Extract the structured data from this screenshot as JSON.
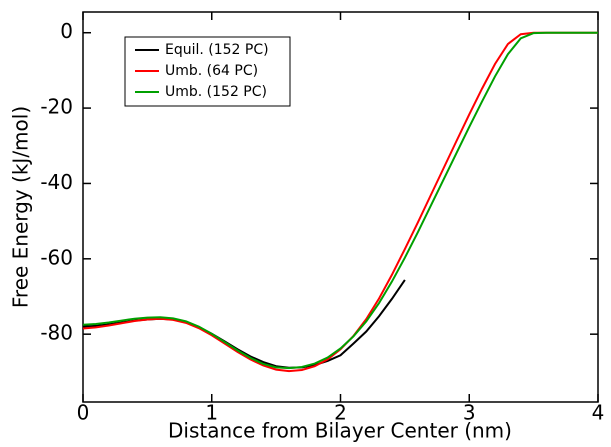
{
  "chart_data": {
    "type": "line",
    "xlabel": "Distance from Bilayer Center (nm)",
    "ylabel": "Free Energy (kJ/mol)",
    "x": [
      0,
      0.1,
      0.2,
      0.3,
      0.4,
      0.5,
      0.6,
      0.7,
      0.8,
      0.9,
      1.0,
      1.1,
      1.2,
      1.3,
      1.4,
      1.5,
      1.6,
      1.7,
      1.8,
      1.9,
      2.0,
      2.1,
      2.2,
      2.3,
      2.4,
      2.5,
      2.6,
      2.7,
      2.8,
      2.9,
      3.0,
      3.1,
      3.2,
      3.3,
      3.4,
      3.5,
      3.6,
      3.7,
      3.8,
      3.9,
      4.0
    ],
    "series": [
      {
        "name": "Equil. (152 PC)",
        "color": "#000000",
        "values": [
          -78,
          -77.8,
          -77.4,
          -76.9,
          -76.4,
          -76.1,
          -75.9,
          -76.1,
          -76.8,
          -78.1,
          -79.9,
          -81.9,
          -84,
          -85.9,
          -87.4,
          -88.5,
          -88.9,
          -88.8,
          -88.2,
          -87.1,
          -85.6,
          -82.5,
          -79.3,
          -75.2,
          -70.6,
          -65.6,
          null,
          null,
          null,
          null,
          null,
          null,
          null,
          null,
          null,
          null,
          null,
          null,
          null,
          null,
          null
        ]
      },
      {
        "name": "Umb. (64 PC)",
        "color": "#ff0000",
        "values": [
          -78.5,
          -78.2,
          -77.7,
          -77.1,
          -76.5,
          -76.1,
          -75.9,
          -76.2,
          -77,
          -78.4,
          -80.3,
          -82.5,
          -84.7,
          -86.7,
          -88.3,
          -89.4,
          -89.8,
          -89.5,
          -88.5,
          -86.7,
          -84,
          -80.5,
          -76,
          -70.5,
          -64.2,
          -57.4,
          -50.4,
          -43.2,
          -36,
          -28.8,
          -21.7,
          -14.8,
          -8.3,
          -3,
          -0.4,
          0,
          0,
          0,
          0,
          0,
          0
        ]
      },
      {
        "name": "Umb. (152 PC)",
        "color": "#00a000",
        "values": [
          -77.5,
          -77.3,
          -76.9,
          -76.4,
          -75.9,
          -75.6,
          -75.5,
          -75.8,
          -76.6,
          -78,
          -79.9,
          -82.1,
          -84.3,
          -86.3,
          -87.9,
          -88.8,
          -89,
          -88.7,
          -87.8,
          -86.2,
          -83.8,
          -80.6,
          -76.6,
          -71.7,
          -66,
          -59.7,
          -53,
          -46,
          -39,
          -32,
          -25,
          -18.2,
          -11.6,
          -5.7,
          -1.5,
          -0.1,
          0,
          0,
          0,
          0,
          0
        ]
      }
    ],
    "xlim": [
      0,
      4
    ],
    "xticks": [
      0,
      1,
      2,
      3,
      4
    ],
    "ylim": [
      -98,
      5.5
    ],
    "yticks": [
      -80,
      -60,
      -40,
      -20,
      0
    ],
    "legend": "upper left"
  }
}
